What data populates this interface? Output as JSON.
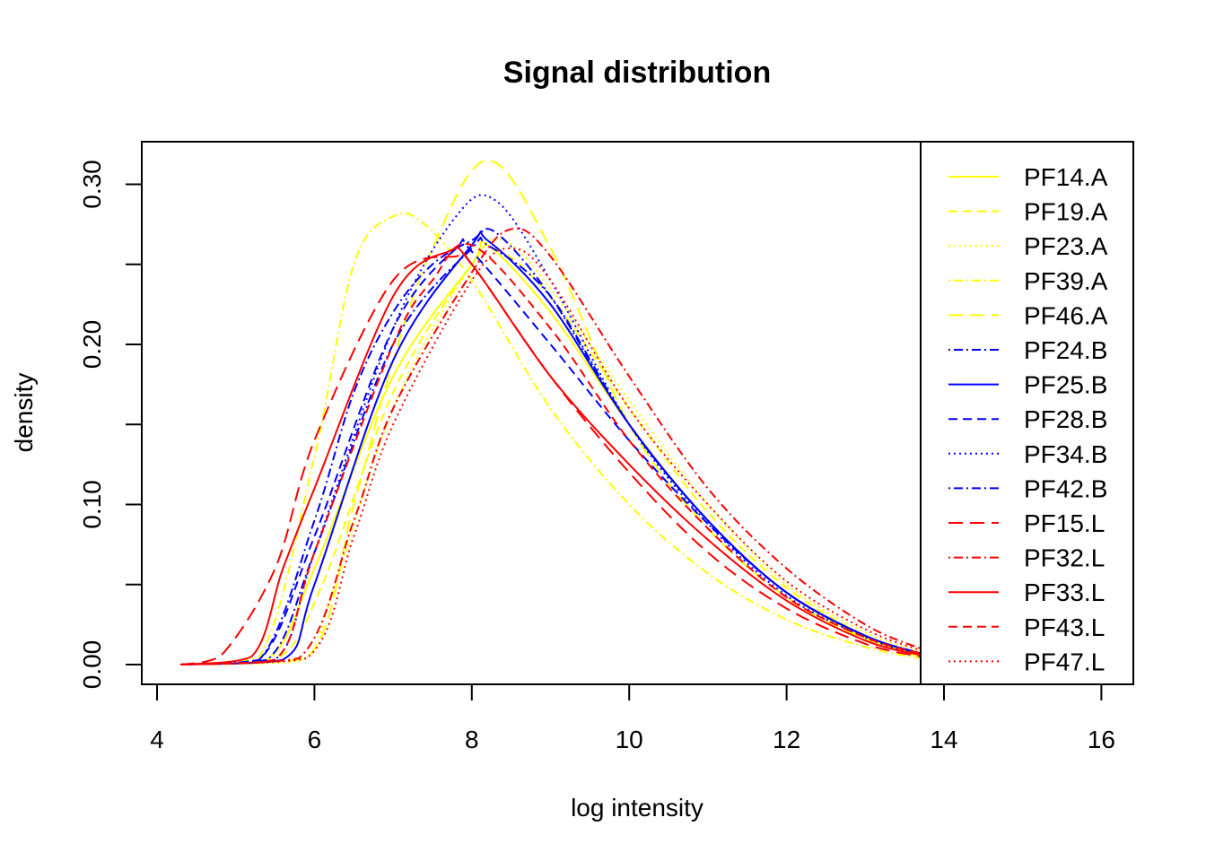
{
  "chart_data": {
    "type": "line",
    "title": "Signal distribution",
    "xlabel": "log intensity",
    "ylabel": "density",
    "xlim": [
      4,
      16
    ],
    "ylim": [
      0,
      0.33
    ],
    "x_ticks": [
      "4",
      "6",
      "8",
      "10",
      "12",
      "14",
      "16"
    ],
    "x_tick_values": [
      4,
      6,
      8,
      10,
      12,
      14,
      16
    ],
    "y_ticks": [
      "0.00",
      "0.10",
      "0.20",
      "0.30"
    ],
    "y_tick_values": [
      0,
      0.1,
      0.2,
      0.3
    ],
    "y_minor_ticks": [
      0.05,
      0.15,
      0.25
    ],
    "legend_position": "right",
    "series": [
      {
        "name": "PF14.A",
        "color": "#ffff00",
        "lty": "solid",
        "xs": [
          4.3,
          5.4,
          6.0,
          7.0,
          8.0,
          8.2,
          9.0,
          10.0,
          11.0,
          12.0,
          13.0,
          13.7
        ],
        "ys": [
          0,
          0.003,
          0.06,
          0.18,
          0.25,
          0.262,
          0.22,
          0.15,
          0.09,
          0.045,
          0.017,
          0.006
        ]
      },
      {
        "name": "PF19.A",
        "color": "#ffff00",
        "lty": "dashed",
        "xs": [
          4.3,
          5.5,
          6.1,
          7.0,
          8.0,
          8.3,
          9.0,
          10.0,
          11.0,
          12.0,
          13.0,
          13.7
        ],
        "ys": [
          0,
          0.003,
          0.05,
          0.17,
          0.25,
          0.26,
          0.23,
          0.16,
          0.095,
          0.048,
          0.018,
          0.007
        ]
      },
      {
        "name": "PF23.A",
        "color": "#ffff00",
        "lty": "dotted",
        "xs": [
          4.3,
          5.8,
          6.2,
          7.0,
          8.0,
          8.4,
          9.0,
          10.0,
          11.0,
          12.0,
          13.0,
          13.7
        ],
        "ys": [
          0,
          0.002,
          0.04,
          0.16,
          0.25,
          0.265,
          0.235,
          0.165,
          0.1,
          0.05,
          0.02,
          0.008
        ]
      },
      {
        "name": "PF39.A",
        "color": "#ffff00",
        "lty": "dotdash",
        "xs": [
          4.3,
          5.3,
          6.0,
          6.5,
          7.0,
          7.4,
          8.0,
          9.0,
          10.0,
          11.0,
          12.0,
          13.0,
          13.7
        ],
        "ys": [
          0,
          0.005,
          0.13,
          0.25,
          0.28,
          0.275,
          0.24,
          0.16,
          0.1,
          0.057,
          0.028,
          0.011,
          0.004
        ]
      },
      {
        "name": "PF46.A",
        "color": "#ffff00",
        "lty": "longdash",
        "xs": [
          4.3,
          5.9,
          6.5,
          7.0,
          7.5,
          8.2,
          9.0,
          10.0,
          11.0,
          12.0,
          13.0,
          13.7
        ],
        "ys": [
          0,
          0.004,
          0.1,
          0.19,
          0.26,
          0.315,
          0.26,
          0.15,
          0.085,
          0.042,
          0.016,
          0.005
        ]
      },
      {
        "name": "PF24.B",
        "color": "#0000ff",
        "lty": "dotdash",
        "xs": [
          4.3,
          5.3,
          6.0,
          6.5,
          7.0,
          7.5,
          8.0,
          8.3,
          9.0,
          10.0,
          11.0,
          12.0,
          13.0,
          13.7
        ],
        "ys": [
          0,
          0.003,
          0.09,
          0.17,
          0.22,
          0.25,
          0.265,
          0.27,
          0.23,
          0.15,
          0.09,
          0.045,
          0.018,
          0.007
        ]
      },
      {
        "name": "PF25.B",
        "color": "#0000ff",
        "lty": "solid",
        "xs": [
          4.3,
          5.6,
          6.0,
          7.0,
          8.0,
          8.2,
          9.0,
          10.0,
          11.0,
          12.0,
          13.0,
          13.7
        ],
        "ys": [
          0,
          0.003,
          0.05,
          0.19,
          0.262,
          0.265,
          0.225,
          0.15,
          0.09,
          0.045,
          0.018,
          0.007
        ]
      },
      {
        "name": "PF28.B",
        "color": "#0000ff",
        "lty": "dashed",
        "xs": [
          4.3,
          5.3,
          6.0,
          7.0,
          7.8,
          8.0,
          9.0,
          10.0,
          11.0,
          12.0,
          13.0,
          13.7
        ],
        "ys": [
          0,
          0.003,
          0.08,
          0.21,
          0.26,
          0.258,
          0.2,
          0.14,
          0.088,
          0.045,
          0.018,
          0.007
        ]
      },
      {
        "name": "PF34.B",
        "color": "#0000ff",
        "lty": "dotted",
        "xs": [
          4.3,
          5.5,
          6.0,
          7.0,
          7.8,
          8.3,
          9.0,
          10.0,
          11.0,
          12.0,
          13.0,
          13.7
        ],
        "ys": [
          0,
          0.003,
          0.07,
          0.21,
          0.28,
          0.29,
          0.24,
          0.15,
          0.088,
          0.043,
          0.017,
          0.006
        ]
      },
      {
        "name": "PF42.B",
        "color": "#0000ff",
        "lty": "dotdash",
        "xs": [
          4.3,
          5.4,
          6.0,
          7.0,
          8.0,
          8.2,
          9.0,
          10.0,
          11.0,
          12.0,
          13.0,
          13.7
        ],
        "ys": [
          0,
          0.003,
          0.07,
          0.2,
          0.26,
          0.262,
          0.23,
          0.15,
          0.09,
          0.045,
          0.018,
          0.007
        ]
      },
      {
        "name": "PF15.L",
        "color": "#ff0000",
        "lty": "longdash",
        "xs": [
          4.3,
          4.8,
          5.5,
          6.0,
          7.0,
          7.8,
          8.0,
          9.0,
          10.0,
          11.0,
          12.0,
          13.0,
          13.7
        ],
        "ys": [
          0,
          0.005,
          0.06,
          0.14,
          0.24,
          0.255,
          0.25,
          0.18,
          0.12,
          0.07,
          0.035,
          0.013,
          0.005
        ]
      },
      {
        "name": "PF32.L",
        "color": "#ff0000",
        "lty": "dotdash",
        "xs": [
          4.3,
          5.8,
          6.5,
          7.0,
          8.0,
          8.5,
          9.0,
          10.0,
          11.0,
          12.0,
          13.0,
          13.7
        ],
        "ys": [
          0,
          0.004,
          0.09,
          0.16,
          0.245,
          0.272,
          0.255,
          0.18,
          0.11,
          0.06,
          0.025,
          0.01
        ]
      },
      {
        "name": "PF33.L",
        "color": "#ff0000",
        "lty": "solid",
        "xs": [
          4.3,
          5.2,
          5.6,
          6.0,
          7.0,
          7.7,
          8.0,
          9.0,
          10.0,
          11.0,
          12.0,
          13.0,
          13.7
        ],
        "ys": [
          0,
          0.005,
          0.06,
          0.11,
          0.23,
          0.258,
          0.25,
          0.18,
          0.125,
          0.078,
          0.04,
          0.015,
          0.006
        ]
      },
      {
        "name": "PF43.L",
        "color": "#ff0000",
        "lty": "dashed",
        "xs": [
          4.3,
          5.5,
          6.0,
          7.0,
          7.5,
          8.0,
          9.0,
          10.0,
          11.0,
          12.0,
          13.0,
          13.7
        ],
        "ys": [
          0,
          0.003,
          0.07,
          0.2,
          0.24,
          0.262,
          0.21,
          0.14,
          0.085,
          0.042,
          0.017,
          0.007
        ]
      },
      {
        "name": "PF47.L",
        "color": "#ff0000",
        "lty": "dotted",
        "xs": [
          4.3,
          5.9,
          6.5,
          7.0,
          8.0,
          8.5,
          9.0,
          10.0,
          11.0,
          12.0,
          13.0,
          13.7
        ],
        "ys": [
          0,
          0.004,
          0.08,
          0.15,
          0.24,
          0.26,
          0.24,
          0.16,
          0.1,
          0.052,
          0.022,
          0.009
        ]
      }
    ]
  }
}
